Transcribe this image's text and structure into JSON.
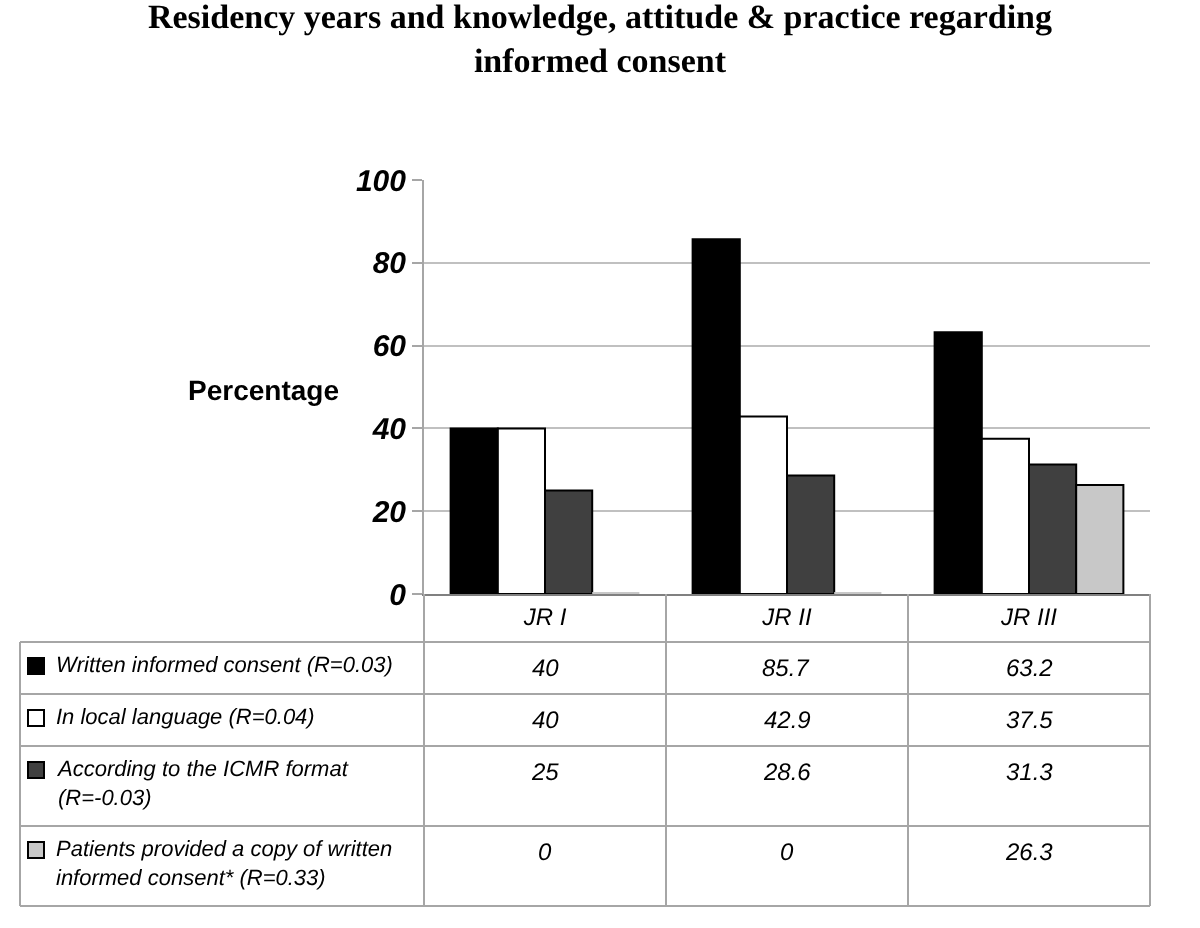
{
  "chart_data": {
    "type": "bar",
    "title": "Residency years and knowledge, attitude & practice regarding informed consent",
    "ylabel": "Percentage",
    "categories": [
      "JR I",
      "JR II",
      "JR III"
    ],
    "series": [
      {
        "name": "Written informed consent (R=0.03)",
        "color": "#000000",
        "values": [
          40,
          85.7,
          63.2
        ]
      },
      {
        "name": "In local language (R=0.04)",
        "color": "#ffffff",
        "values": [
          40,
          42.9,
          37.5
        ]
      },
      {
        "name": "According to the ICMR format (R=-0.03)",
        "color": "#404040",
        "values": [
          25,
          28.6,
          31.3
        ]
      },
      {
        "name": "Patients provided a copy of written informed consent* (R=0.33)",
        "color": "#c8c8c8",
        "values": [
          0,
          0,
          26.3
        ]
      }
    ],
    "ylim": [
      0,
      100
    ],
    "yticks": [
      0,
      20,
      40,
      60,
      80,
      100
    ],
    "grid": "y",
    "legend": "bottom left",
    "data_labels": true
  }
}
